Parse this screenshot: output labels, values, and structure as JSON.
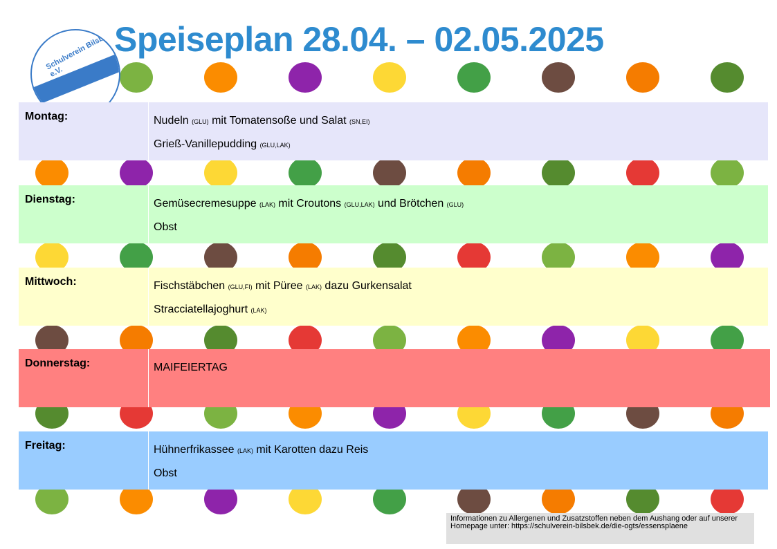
{
  "header": {
    "title": "Speiseplan 28.04. – 02.05.2025",
    "logo": "Schulverein Bilsbek e.V."
  },
  "days": [
    {
      "name": "Montag:",
      "lines": [
        [
          {
            "text": "Nudeln "
          },
          {
            "allergens": "(GLU)"
          },
          {
            "text": " mit Tomatensoße und Salat "
          },
          {
            "allergens": "(SN,EI)"
          }
        ],
        [
          {
            "text": "Grieß-Vanillepudding "
          },
          {
            "allergens": "(GLU,LAK)"
          }
        ]
      ]
    },
    {
      "name": "Dienstag:",
      "lines": [
        [
          {
            "text": "Gemüsecremesuppe "
          },
          {
            "allergens": "(LAK)"
          },
          {
            "text": " mit Croutons "
          },
          {
            "allergens": "(GLU,LAK)"
          },
          {
            "text": " und Brötchen "
          },
          {
            "allergens": "(GLU)"
          }
        ],
        [
          {
            "text": "Obst"
          }
        ]
      ]
    },
    {
      "name": "Mittwoch:",
      "lines": [
        [
          {
            "text": "Fischstäbchen "
          },
          {
            "allergens": "(GLU,FI)"
          },
          {
            "text": " mit Püree "
          },
          {
            "allergens": "(LAK)"
          },
          {
            "text": " dazu Gurkensalat"
          }
        ],
        [
          {
            "text": "Stracciatellajoghurt "
          },
          {
            "allergens": "(LAK)"
          }
        ]
      ]
    },
    {
      "name": "Donnerstag:",
      "lines": [
        [
          {
            "text": "MAIFEIERTAG"
          }
        ]
      ]
    },
    {
      "name": "Freitag:",
      "lines": [
        [
          {
            "text": "Hühnerfrikassee "
          },
          {
            "allergens": "(LAK)"
          },
          {
            "text": " mit Karotten dazu Reis"
          }
        ],
        [
          {
            "text": "Obst"
          }
        ]
      ]
    }
  ],
  "footer": {
    "note": "Informationen zu Allergenen und Zusatzstoffen neben dem Aushang oder auf unserer Homepage unter: https://schulverein-bilsbek.de/die-ogts/essensplaene"
  }
}
